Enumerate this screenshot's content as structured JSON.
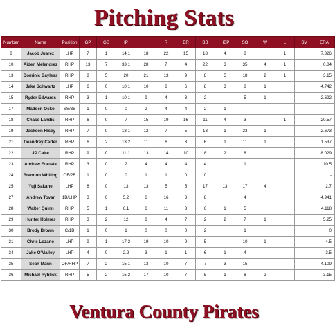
{
  "title": "Pitching Stats",
  "footer": "Ventura County Pirates",
  "columns": [
    "Number",
    "Name",
    "Position",
    "GP",
    "GS",
    "IP",
    "H",
    "R",
    "ER",
    "BB",
    "HBP",
    "SO",
    "W",
    "L",
    "SV",
    "ERA"
  ],
  "rows": [
    [
      "8",
      "Jacob Juarez",
      "LHP",
      "7",
      "1",
      "14.1",
      "18",
      "22",
      "15",
      "18",
      "4",
      "8",
      "",
      "1",
      "",
      "7.326"
    ],
    [
      "10",
      "Aiden Melendrez",
      "RHP",
      "13",
      "7",
      "33.1",
      "28",
      "7",
      "4",
      "22",
      "3",
      "35",
      "4",
      "1",
      "",
      "0.84"
    ],
    [
      "13",
      "Dominic Bayless",
      "RHP",
      "8",
      "5",
      "20",
      "21",
      "13",
      "9",
      "8",
      "5",
      "18",
      "2",
      "1",
      "",
      "3.15"
    ],
    [
      "14",
      "Jake Schwartz",
      "LHP",
      "6",
      "0",
      "10.1",
      "10",
      "8",
      "6",
      "8",
      "3",
      "8",
      "1",
      "",
      "",
      "4.742"
    ],
    [
      "15",
      "Ryder Edwards",
      "RHP",
      "3",
      "1",
      "10.1",
      "9",
      "4",
      "3",
      "2",
      "",
      "5",
      "1",
      "",
      "",
      "2.692"
    ],
    [
      "17",
      "Madden Ocko",
      "SS/3B",
      "1",
      "0",
      "0",
      "2",
      "4",
      "4",
      "2",
      "1",
      "",
      "",
      "",
      "",
      "-"
    ],
    [
      "18",
      "Chase Landis",
      "RHP",
      "6",
      "0",
      "7",
      "15",
      "19",
      "16",
      "11",
      "4",
      "3",
      "",
      "1",
      "",
      "20.57"
    ],
    [
      "19",
      "Jackson Hisey",
      "RHP",
      "7",
      "0",
      "18.1",
      "12",
      "7",
      "5",
      "13",
      "1",
      "23",
      "1",
      "",
      "",
      "2.673"
    ],
    [
      "21",
      "Deandrey Carter",
      "RHP",
      "6",
      "2",
      "13.2",
      "11",
      "6",
      "3",
      "6",
      "1",
      "11",
      "1",
      "",
      "",
      "1.537"
    ],
    [
      "22",
      "JP Caire",
      "RHP",
      "9",
      "0",
      "11.1",
      "13",
      "14",
      "10",
      "8",
      "2",
      "8",
      "",
      "",
      "",
      "8.029"
    ],
    [
      "23",
      "Andrew Frausta",
      "RHP",
      "3",
      "0",
      "2",
      "4",
      "4",
      "4",
      "4",
      "",
      "1",
      "",
      "",
      "",
      "10.5"
    ],
    [
      "24",
      "Brandon Whiting",
      "OF/2B",
      "1",
      "0",
      "0",
      "1",
      "1",
      "0",
      "0",
      "",
      "",
      "",
      "",
      "",
      "-"
    ],
    [
      "25",
      "Yuji Sakane",
      "LHP",
      "8",
      "0",
      "13",
      "13",
      "5",
      "5",
      "17",
      "13",
      "17",
      "4",
      "",
      "",
      "2.7"
    ],
    [
      "27",
      "Andrew Tovar",
      "1B/LHP",
      "3",
      "0",
      "5.2",
      "6",
      "16",
      "3",
      "8",
      "",
      "4",
      "",
      "",
      "",
      "4.941"
    ],
    [
      "28",
      "Walter Quinn",
      "RHP",
      "5",
      "1",
      "6.1",
      "6",
      "11",
      "3",
      "6",
      "1",
      "5",
      "",
      "",
      "",
      "4.118"
    ],
    [
      "29",
      "Hunter Holmes",
      "RHP",
      "3",
      "2",
      "12",
      "8",
      "4",
      "7",
      "2",
      "2",
      "7",
      "1",
      "",
      "",
      "5.25"
    ],
    [
      "30",
      "Brody Brown",
      "C/1B",
      "1",
      "0",
      "1",
      "0",
      "0",
      "0",
      "2",
      "",
      "1",
      "",
      "",
      "",
      "0"
    ],
    [
      "31",
      "Chris Lozano",
      "LHP",
      "9",
      "1",
      "17.2",
      "19",
      "10",
      "9",
      "5",
      "",
      "10",
      "1",
      "",
      "",
      "4.5"
    ],
    [
      "34",
      "Jake O'Malley",
      "LHP",
      "4",
      "0",
      "2.2",
      "3",
      "1",
      "1",
      "6",
      "1",
      "4",
      "",
      "",
      "",
      "3.5"
    ],
    [
      "35",
      "Sean Mann",
      "OF/RHP",
      "7",
      "2",
      "15.1",
      "13",
      "10",
      "7",
      "7",
      "3",
      "15",
      "",
      "",
      "",
      "4.109"
    ],
    [
      "36",
      "Michael Ryhlick",
      "RHP",
      "5",
      "2",
      "15.2",
      "17",
      "10",
      "7",
      "5",
      "1",
      "8",
      "2",
      "",
      "",
      "3.15"
    ]
  ],
  "colors": {
    "header_bg": "#8e1022",
    "title": "#8e1022",
    "name_cell_bg": "#dadada"
  }
}
